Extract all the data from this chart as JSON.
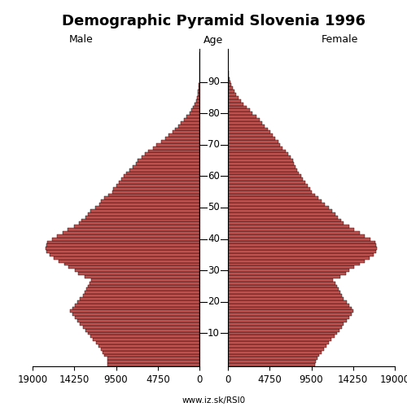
{
  "title": "Demographic Pyramid Slovenia 1996",
  "male_label": "Male",
  "female_label": "Female",
  "age_label": "Age",
  "website": "www.iz.sk/RSI0",
  "ages": [
    0,
    1,
    2,
    3,
    4,
    5,
    6,
    7,
    8,
    9,
    10,
    11,
    12,
    13,
    14,
    15,
    16,
    17,
    18,
    19,
    20,
    21,
    22,
    23,
    24,
    25,
    26,
    27,
    28,
    29,
    30,
    31,
    32,
    33,
    34,
    35,
    36,
    37,
    38,
    39,
    40,
    41,
    42,
    43,
    44,
    45,
    46,
    47,
    48,
    49,
    50,
    51,
    52,
    53,
    54,
    55,
    56,
    57,
    58,
    59,
    60,
    61,
    62,
    63,
    64,
    65,
    66,
    67,
    68,
    69,
    70,
    71,
    72,
    73,
    74,
    75,
    76,
    77,
    78,
    79,
    80,
    81,
    82,
    83,
    84,
    85,
    86,
    87,
    88,
    89,
    90,
    91,
    92,
    93,
    94,
    95,
    96,
    97,
    98,
    99
  ],
  "male": [
    10500,
    10500,
    10500,
    10800,
    11000,
    11200,
    11500,
    11800,
    12100,
    12400,
    12700,
    13000,
    13300,
    13600,
    13900,
    14200,
    14500,
    14700,
    14500,
    14200,
    13900,
    13600,
    13300,
    13100,
    12900,
    12700,
    12500,
    12300,
    13100,
    13800,
    14200,
    14900,
    15400,
    16000,
    16600,
    17100,
    17400,
    17500,
    17400,
    17300,
    16800,
    16200,
    15600,
    15000,
    14300,
    13700,
    13400,
    13000,
    12700,
    12400,
    11900,
    11400,
    11200,
    10800,
    10400,
    9900,
    9800,
    9500,
    9200,
    8900,
    8600,
    8300,
    8000,
    7600,
    7200,
    7000,
    6600,
    6200,
    5800,
    5300,
    4900,
    4400,
    3900,
    3500,
    3100,
    2800,
    2400,
    2100,
    1800,
    1500,
    1100,
    900,
    700,
    530,
    400,
    290,
    210,
    150,
    100,
    65,
    42,
    27,
    17,
    10,
    6,
    4,
    2,
    1,
    1,
    0
  ],
  "female": [
    9900,
    10000,
    10200,
    10400,
    10700,
    10900,
    11200,
    11500,
    11800,
    12100,
    12400,
    12700,
    13000,
    13200,
    13500,
    13800,
    14100,
    14300,
    14100,
    13800,
    13500,
    13200,
    13000,
    12800,
    12600,
    12400,
    12200,
    12000,
    12800,
    13400,
    13800,
    14400,
    15000,
    15600,
    16100,
    16600,
    16900,
    17000,
    16900,
    16800,
    16200,
    15600,
    15000,
    14400,
    13800,
    13200,
    12900,
    12500,
    12200,
    11900,
    11500,
    11000,
    10700,
    10300,
    9900,
    9500,
    9400,
    9100,
    8800,
    8500,
    8300,
    8100,
    7900,
    7700,
    7500,
    7400,
    7100,
    6900,
    6600,
    6200,
    5900,
    5700,
    5400,
    5100,
    4800,
    4500,
    4200,
    3900,
    3600,
    3200,
    2800,
    2500,
    2100,
    1800,
    1500,
    1200,
    950,
    720,
    530,
    370,
    250,
    165,
    105,
    65,
    39,
    22,
    13,
    7,
    4,
    2
  ],
  "bar_color": "#c0504d",
  "bar_edge_color": "#000000",
  "bar_linewidth": 0.3,
  "xlim": 19000,
  "xticks": [
    0,
    4750,
    9500,
    14250,
    19000
  ],
  "age_ticks": [
    10,
    20,
    30,
    40,
    50,
    60,
    70,
    80,
    90
  ],
  "background_color": "#ffffff",
  "title_fontsize": 13,
  "label_fontsize": 9,
  "tick_fontsize": 8.5
}
